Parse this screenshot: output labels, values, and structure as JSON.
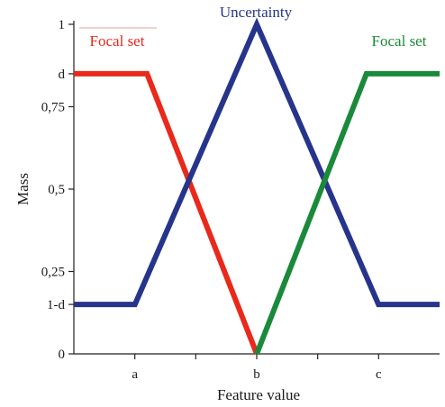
{
  "chart_data": {
    "type": "line",
    "xlabel": "Feature value",
    "ylabel": "Mass",
    "xlim": [
      0,
      1
    ],
    "ylim": [
      0,
      1
    ],
    "x_ticks": [
      {
        "value": 0.1667,
        "label": "a"
      },
      {
        "value": 0.3333,
        "label": ""
      },
      {
        "value": 0.5,
        "label": "b"
      },
      {
        "value": 0.6667,
        "label": ""
      },
      {
        "value": 0.8333,
        "label": "c"
      }
    ],
    "y_ticks": [
      {
        "value": 0,
        "label": "0"
      },
      {
        "value": 0.15,
        "label": "1-d"
      },
      {
        "value": 0.25,
        "label": "0,25"
      },
      {
        "value": 0.5,
        "label": "0,5"
      },
      {
        "value": 0.75,
        "label": "0,75"
      },
      {
        "value": 0.85,
        "label": "d"
      },
      {
        "value": 1,
        "label": "1"
      }
    ],
    "series": [
      {
        "name": "Focal set",
        "color": "#e8291c",
        "points": [
          [
            0,
            0.85
          ],
          [
            0.2,
            0.85
          ],
          [
            0.5,
            0
          ]
        ]
      },
      {
        "name": "Uncertainty",
        "color": "#27348b",
        "points": [
          [
            0,
            0.15
          ],
          [
            0.167,
            0.15
          ],
          [
            0.5,
            1
          ],
          [
            0.833,
            0.15
          ],
          [
            1,
            0.15
          ]
        ]
      },
      {
        "name": "Focal set",
        "color": "#1a8a3a",
        "points": [
          [
            0.5,
            0
          ],
          [
            0.8,
            0.85
          ],
          [
            1,
            0.85
          ]
        ]
      }
    ],
    "grid": false,
    "legend": "inline labels"
  }
}
